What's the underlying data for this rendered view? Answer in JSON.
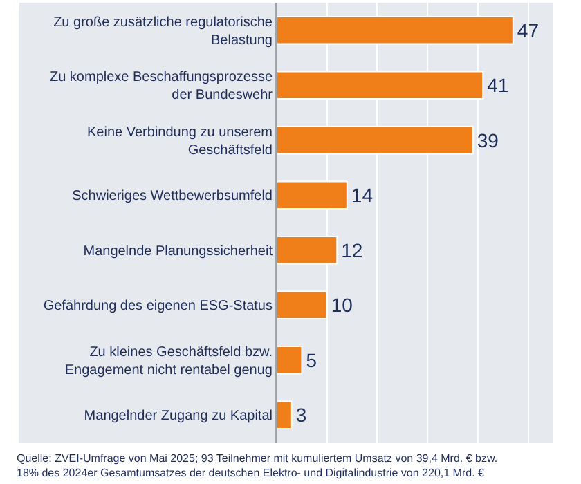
{
  "chart_data": {
    "type": "bar",
    "orientation": "horizontal",
    "categories": [
      "Zu große zusätzliche regulatorische Belastung",
      "Zu komplexe Beschaffungsprozesse der Bundeswehr",
      "Keine Verbindung zu unserem Geschäftsfeld",
      "Schwieriges Wettbewerbsumfeld",
      "Mangelnde Planungssicherheit",
      "Gefährdung des eigenen ESG-Status",
      "Zu kleines Geschäftsfeld bzw. Engagement nicht rentabel genug",
      "Mangelnder Zugang zu Kapital"
    ],
    "values": [
      47,
      41,
      39,
      14,
      12,
      10,
      5,
      3
    ],
    "color": "#f07f1a",
    "xlim": [
      0,
      55
    ],
    "xticks": [
      {
        "value": 10,
        "label": null
      },
      {
        "value": 20,
        "label": null
      },
      {
        "value": 30,
        "label": null
      },
      {
        "value": 40,
        "label": null
      },
      {
        "value": 50,
        "label": null
      }
    ],
    "grid": "x",
    "tick_labels": "y",
    "data_labels": true,
    "annotations": [
      "Quelle: ZVEI-Umfrage von Mai 2025; 93 Teilnehmer mit kumuliertem Umsatz von 39,4 Mrd. € bzw. 18% des 2024er Gesamtumsatzes der deutschen Elektro- und Digitalindustrie von 220,1 Mrd. €"
    ]
  }
}
